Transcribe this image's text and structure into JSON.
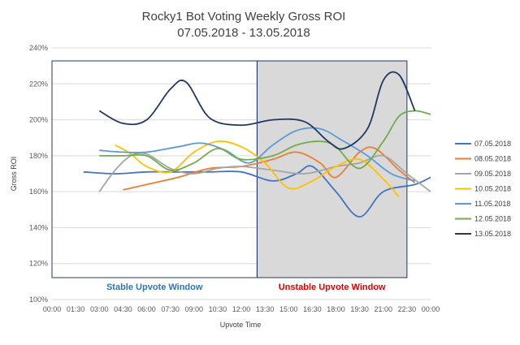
{
  "chart_data": {
    "type": "line",
    "title": "Rocky1 Bot Voting Weekly Gross ROI",
    "subtitle": "07.05.2018 - 13.05.2018",
    "xlabel": "Upvote Time",
    "ylabel": "Gross ROI",
    "x_ticks": [
      "00:00",
      "01:30",
      "03:00",
      "04:30",
      "06:00",
      "07:30",
      "09:00",
      "10:30",
      "12:00",
      "13:30",
      "15:00",
      "16:30",
      "18:00",
      "19:30",
      "21:00",
      "22:30",
      "00:00"
    ],
    "y_ticks": [
      "100%",
      "120%",
      "140%",
      "160%",
      "180%",
      "200%",
      "220%",
      "240%"
    ],
    "ylim": [
      100,
      240
    ],
    "xlim": [
      0,
      24
    ],
    "grid": true,
    "legend_position": "right",
    "annotations": {
      "stable_window": {
        "label": "Stable Upvote Window",
        "x_range": [
          0,
          13
        ],
        "color": "#2e75b6"
      },
      "unstable_window": {
        "label": "Unstable Upvote Window",
        "x_range": [
          13,
          22.5
        ],
        "color": "#e00000",
        "fill": "#d9d9d9"
      }
    },
    "series": [
      {
        "name": "07.05.2018",
        "color": "#4472c4",
        "points": [
          [
            2,
            171
          ],
          [
            4,
            170
          ],
          [
            6,
            171
          ],
          [
            8,
            171
          ],
          [
            10,
            171
          ],
          [
            12,
            171
          ],
          [
            14,
            166
          ],
          [
            15.5,
            170
          ],
          [
            16.5,
            174
          ],
          [
            18,
            160
          ],
          [
            19.5,
            146
          ],
          [
            21,
            160
          ],
          [
            23,
            164
          ],
          [
            24,
            168
          ]
        ]
      },
      {
        "name": "08.05.2018",
        "color": "#ed7d31",
        "points": [
          [
            4.5,
            161
          ],
          [
            6,
            164
          ],
          [
            8,
            168
          ],
          [
            10,
            173
          ],
          [
            12,
            174
          ],
          [
            14,
            178
          ],
          [
            15.5,
            182
          ],
          [
            17,
            176
          ],
          [
            18,
            168
          ],
          [
            19.5,
            182
          ],
          [
            20.5,
            184
          ],
          [
            22,
            172
          ],
          [
            23,
            165
          ]
        ]
      },
      {
        "name": "09.05.2018",
        "color": "#a5a5a5",
        "points": [
          [
            3,
            160
          ],
          [
            4,
            172
          ],
          [
            5,
            180
          ],
          [
            6,
            181
          ],
          [
            7.5,
            173
          ],
          [
            9,
            170
          ],
          [
            10.5,
            173
          ],
          [
            12,
            174
          ],
          [
            14,
            172
          ],
          [
            16,
            170
          ],
          [
            18,
            174
          ],
          [
            19.5,
            176
          ],
          [
            21,
            180
          ],
          [
            22.5,
            170
          ],
          [
            24,
            160
          ]
        ]
      },
      {
        "name": "10.05.2018",
        "color": "#ffc000",
        "points": [
          [
            4,
            186
          ],
          [
            5,
            181
          ],
          [
            6,
            174
          ],
          [
            7.5,
            171
          ],
          [
            9,
            182
          ],
          [
            10.5,
            188
          ],
          [
            12,
            185
          ],
          [
            13.5,
            176
          ],
          [
            15,
            162
          ],
          [
            16.5,
            166
          ],
          [
            18,
            174
          ],
          [
            19.5,
            178
          ],
          [
            21,
            167
          ],
          [
            22,
            157
          ]
        ]
      },
      {
        "name": "11.05.2018",
        "color": "#5b9bd5",
        "points": [
          [
            3,
            183
          ],
          [
            4.5,
            182
          ],
          [
            6,
            182
          ],
          [
            8,
            185
          ],
          [
            9.5,
            187
          ],
          [
            11,
            183
          ],
          [
            12.5,
            176
          ],
          [
            14,
            186
          ],
          [
            15.5,
            194
          ],
          [
            17,
            195
          ],
          [
            18.5,
            188
          ],
          [
            20,
            180
          ],
          [
            21.5,
            170
          ],
          [
            23,
            166
          ]
        ]
      },
      {
        "name": "12.05.2018",
        "color": "#70ad47",
        "points": [
          [
            3,
            180
          ],
          [
            4.5,
            180
          ],
          [
            6,
            180
          ],
          [
            7.5,
            172
          ],
          [
            9,
            176
          ],
          [
            10.5,
            184
          ],
          [
            12,
            178
          ],
          [
            14,
            180
          ],
          [
            15.5,
            186
          ],
          [
            17,
            188
          ],
          [
            18,
            185
          ],
          [
            19.5,
            173
          ],
          [
            21,
            188
          ],
          [
            22,
            202
          ],
          [
            23,
            205
          ],
          [
            24,
            203
          ]
        ]
      },
      {
        "name": "13.05.2018",
        "color": "#1f3864",
        "points": [
          [
            3,
            205
          ],
          [
            4.5,
            198
          ],
          [
            6,
            200
          ],
          [
            7.5,
            217
          ],
          [
            8.5,
            221
          ],
          [
            10,
            201
          ],
          [
            12,
            197
          ],
          [
            14,
            200
          ],
          [
            16,
            199
          ],
          [
            17.5,
            188
          ],
          [
            18.5,
            184
          ],
          [
            20,
            195
          ],
          [
            21,
            222
          ],
          [
            22,
            225
          ],
          [
            23,
            205
          ]
        ]
      }
    ]
  }
}
